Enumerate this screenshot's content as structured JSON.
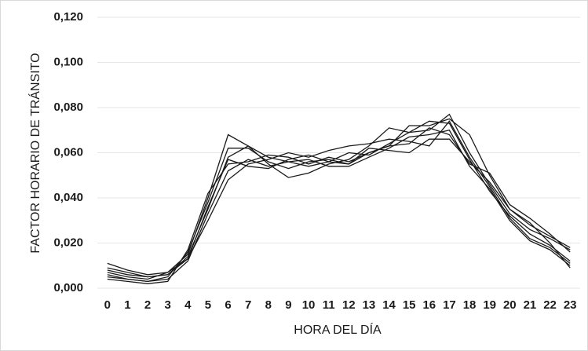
{
  "chart_data": {
    "type": "line",
    "xlabel": "HORA DEL DÍA",
    "ylabel": "FACTOR HORARIO DE TRÁNSITO",
    "categories": [
      "0",
      "1",
      "2",
      "3",
      "4",
      "5",
      "6",
      "7",
      "8",
      "9",
      "10",
      "11",
      "12",
      "13",
      "14",
      "15",
      "16",
      "17",
      "18",
      "19",
      "20",
      "21",
      "22",
      "23"
    ],
    "series": [
      {
        "color": "#1a1a1a",
        "values": [
          0.011,
          0.008,
          0.006,
          0.007,
          0.015,
          0.04,
          0.068,
          0.063,
          0.055,
          0.049,
          0.051,
          0.055,
          0.057,
          0.063,
          0.071,
          0.069,
          0.07,
          0.077,
          0.06,
          0.046,
          0.033,
          0.026,
          0.022,
          0.017
        ]
      },
      {
        "color": "#1a1a1a",
        "values": [
          0.008,
          0.006,
          0.005,
          0.006,
          0.014,
          0.035,
          0.058,
          0.063,
          0.058,
          0.056,
          0.054,
          0.056,
          0.055,
          0.06,
          0.063,
          0.072,
          0.072,
          0.075,
          0.068,
          0.05,
          0.035,
          0.028,
          0.023,
          0.018
        ]
      },
      {
        "color": "#1a1a1a",
        "values": [
          0.007,
          0.005,
          0.004,
          0.007,
          0.013,
          0.03,
          0.048,
          0.055,
          0.057,
          0.06,
          0.058,
          0.061,
          0.063,
          0.064,
          0.066,
          0.065,
          0.063,
          0.074,
          0.058,
          0.045,
          0.031,
          0.022,
          0.018,
          0.011
        ]
      },
      {
        "color": "#1a1a1a",
        "values": [
          0.006,
          0.004,
          0.003,
          0.005,
          0.016,
          0.038,
          0.062,
          0.062,
          0.056,
          0.053,
          0.056,
          0.057,
          0.055,
          0.062,
          0.061,
          0.06,
          0.066,
          0.066,
          0.056,
          0.047,
          0.035,
          0.029,
          0.02,
          0.009
        ]
      },
      {
        "color": "#1a1a1a",
        "values": [
          0.005,
          0.004,
          0.003,
          0.004,
          0.012,
          0.033,
          0.052,
          0.057,
          0.054,
          0.056,
          0.057,
          0.054,
          0.054,
          0.058,
          0.062,
          0.067,
          0.068,
          0.07,
          0.054,
          0.044,
          0.03,
          0.021,
          0.017,
          0.01
        ]
      },
      {
        "color": "#1a1a1a",
        "values": [
          0.004,
          0.003,
          0.002,
          0.003,
          0.017,
          0.042,
          0.055,
          0.056,
          0.059,
          0.058,
          0.055,
          0.058,
          0.056,
          0.06,
          0.063,
          0.064,
          0.071,
          0.068,
          0.055,
          0.051,
          0.037,
          0.031,
          0.024,
          0.016
        ]
      },
      {
        "color": "#1a1a1a",
        "values": [
          0.009,
          0.007,
          0.005,
          0.006,
          0.013,
          0.036,
          0.057,
          0.054,
          0.053,
          0.057,
          0.059,
          0.056,
          0.06,
          0.059,
          0.064,
          0.069,
          0.074,
          0.073,
          0.057,
          0.043,
          0.032,
          0.024,
          0.019,
          0.012
        ]
      }
    ],
    "ylim": [
      0,
      0.12
    ],
    "yticks": [
      {
        "value": 0,
        "label": "0,000"
      },
      {
        "value": 0.02,
        "label": "0,020"
      },
      {
        "value": 0.04,
        "label": "0,040"
      },
      {
        "value": 0.06,
        "label": "0,060"
      },
      {
        "value": 0.08,
        "label": "0,080"
      },
      {
        "value": 0.1,
        "label": "0,100"
      },
      {
        "value": 0.12,
        "label": "0,120"
      }
    ],
    "grid": true
  }
}
